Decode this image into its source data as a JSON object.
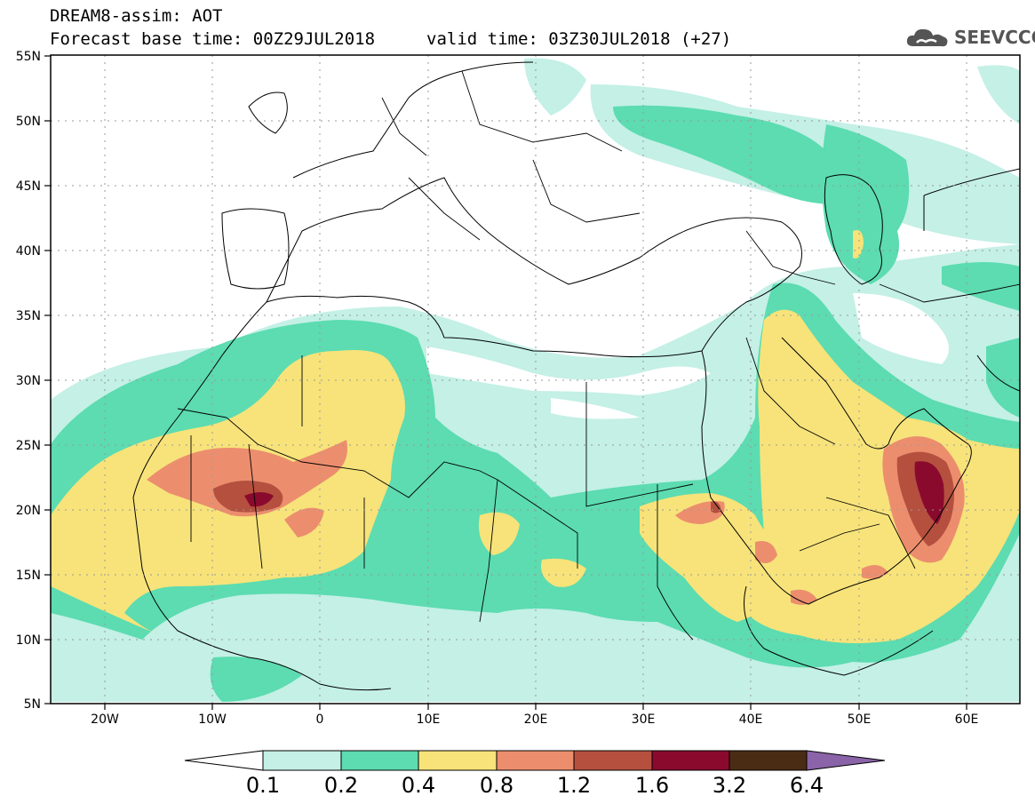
{
  "header": {
    "title_line1": "DREAM8-assim: AOT",
    "forecast_base": "Forecast base time: 00Z29JUL2018",
    "valid_time": "valid time: 03Z30JUL2018 (+27)",
    "logo_text": "SEEVCCC",
    "logo_icon": "cloud-icon"
  },
  "axes": {
    "lat_labels": [
      "55N",
      "50N",
      "45N",
      "40N",
      "35N",
      "30N",
      "25N",
      "20N",
      "15N",
      "10N",
      "5N"
    ],
    "lon_labels": [
      "20W",
      "10W",
      "0",
      "10E",
      "20E",
      "30E",
      "40E",
      "50E",
      "60E"
    ]
  },
  "colorbar": {
    "labels": [
      "0.1",
      "0.2",
      "0.4",
      "0.8",
      "1.2",
      "1.6",
      "3.2",
      "6.4"
    ],
    "colors": [
      "#ffffff",
      "#c4f0e6",
      "#5cdcb0",
      "#f7e37a",
      "#ec8e6e",
      "#b5503f",
      "#8a0a2e",
      "#4a2c14",
      "#8a63a8"
    ]
  },
  "fill_colors": {
    "c01": "#c4f0e6",
    "c02": "#5cdcb0",
    "c04": "#f7e37a",
    "c08": "#ec8e6e",
    "c12": "#b5503f",
    "c16": "#8a0a2e"
  }
}
